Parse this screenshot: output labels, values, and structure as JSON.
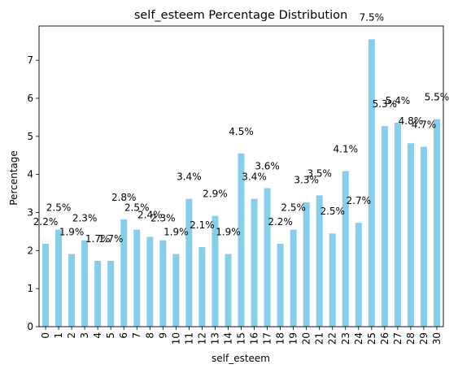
{
  "chart_data": {
    "type": "bar",
    "title": "self_esteem Percentage Distribution",
    "xlabel": "self_esteem",
    "ylabel": "Percentage",
    "categories": [
      "0",
      "1",
      "2",
      "3",
      "4",
      "5",
      "6",
      "7",
      "8",
      "9",
      "10",
      "11",
      "12",
      "13",
      "14",
      "15",
      "16",
      "17",
      "18",
      "19",
      "20",
      "21",
      "22",
      "23",
      "24",
      "25",
      "26",
      "27",
      "28",
      "29",
      "30"
    ],
    "values": [
      2.18,
      2.55,
      1.91,
      2.27,
      1.73,
      1.73,
      2.82,
      2.55,
      2.36,
      2.27,
      1.91,
      3.36,
      2.09,
      2.91,
      1.91,
      4.55,
      3.36,
      3.64,
      2.18,
      2.55,
      3.27,
      3.45,
      2.45,
      4.09,
      2.73,
      7.55,
      5.27,
      5.36,
      4.82,
      4.73,
      5.45
    ],
    "data_labels": [
      "2.2%",
      "2.5%",
      "1.9%",
      "2.3%",
      "1.7%",
      "1.7%",
      "2.8%",
      "2.5%",
      "2.4%",
      "2.3%",
      "1.9%",
      "3.4%",
      "2.1%",
      "2.9%",
      "1.9%",
      "4.5%",
      "3.4%",
      "3.6%",
      "2.2%",
      "2.5%",
      "3.3%",
      "3.5%",
      "2.5%",
      "4.1%",
      "2.7%",
      "7.5%",
      "5.3%",
      "5.4%",
      "4.8%",
      "4.7%",
      "5.5%"
    ],
    "ylim": [
      0,
      7.9
    ],
    "yticks": [
      0,
      1,
      2,
      3,
      4,
      5,
      6,
      7
    ],
    "legend": "none",
    "grid": false,
    "colors": {
      "bar": "#87ceeb",
      "axis": "#000000"
    }
  }
}
